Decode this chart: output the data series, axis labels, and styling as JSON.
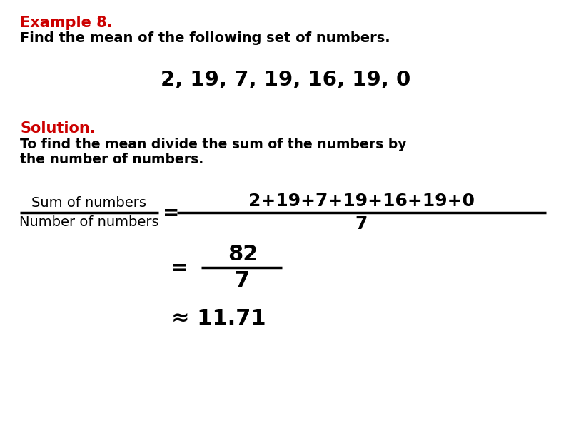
{
  "background_color": "#ffffff",
  "text_color": "#000000",
  "red_color": "#cc0000",
  "title_text": "Example 8.",
  "subtitle_text": "Find the mean of the following set of numbers.",
  "numbers_text": "2, 19, 7, 19, 16, 19, 0",
  "solution_label": "Solution.",
  "instruction_line1": "To find the mean divide the sum of the numbers by",
  "instruction_line2": "the number of numbers.",
  "frac_left_num": "Sum of numbers",
  "frac_left_den": "Number of numbers",
  "frac_right_num": "2+19+7+19+16+19+0",
  "frac_right_den": "7",
  "step2_num": "82",
  "step2_den": "7",
  "step3_text": "≈ 11.71",
  "equals": "=",
  "approx": "≈"
}
